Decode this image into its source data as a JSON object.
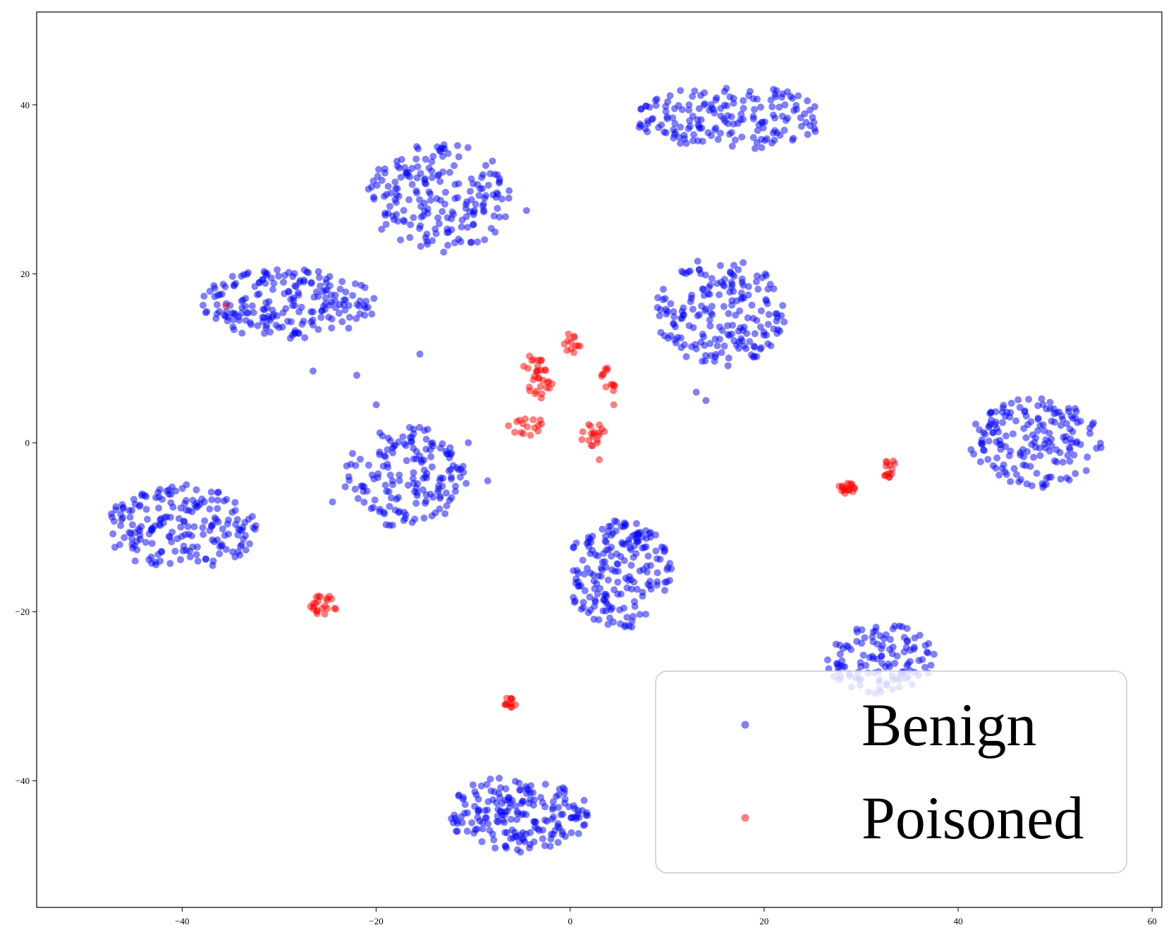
{
  "chart_data": {
    "type": "scatter",
    "title": "",
    "xlabel": "",
    "ylabel": "",
    "xlim": [
      -55,
      61
    ],
    "ylim": [
      -55,
      51
    ],
    "x_ticks": [
      -40,
      -20,
      0,
      20,
      40,
      60
    ],
    "y_ticks": [
      -40,
      -20,
      0,
      20,
      40
    ],
    "grid": false,
    "legend_position": "bottom-right",
    "colors": {
      "Benign": "#0000ff",
      "Poisoned": "#ff0000"
    },
    "marker_alpha": 0.5,
    "series": [
      {
        "name": "Benign",
        "clusters": [
          {
            "cx": 16.5,
            "cy": 38.5,
            "rx": 10.0,
            "ry": 3.8,
            "count": 170
          },
          {
            "cx": -13.5,
            "cy": 29.0,
            "rx": 7.5,
            "ry": 6.5,
            "count": 190
          },
          {
            "cx": -29.0,
            "cy": 16.5,
            "rx": 9.0,
            "ry": 4.2,
            "count": 200
          },
          {
            "cx": 15.5,
            "cy": 15.5,
            "rx": 6.7,
            "ry": 6.5,
            "count": 190
          },
          {
            "cx": -17.0,
            "cy": -4.0,
            "rx": 6.5,
            "ry": 6.0,
            "count": 160
          },
          {
            "cx": -40.0,
            "cy": -10.0,
            "rx": 7.8,
            "ry": 5.2,
            "count": 190
          },
          {
            "cx": 5.0,
            "cy": -15.5,
            "rx": 5.5,
            "ry": 6.5,
            "count": 190
          },
          {
            "cx": 48.0,
            "cy": 0.0,
            "rx": 6.8,
            "ry": 5.4,
            "count": 170
          },
          {
            "cx": 32.0,
            "cy": -25.5,
            "rx": 6.0,
            "ry": 4.2,
            "count": 120
          },
          {
            "cx": -5.5,
            "cy": -44.0,
            "rx": 7.5,
            "ry": 4.5,
            "count": 190
          }
        ],
        "outliers": [
          [
            -22,
            8
          ],
          [
            -15.5,
            10.5
          ],
          [
            -20,
            4.5
          ],
          [
            -26.5,
            8.5
          ],
          [
            -4.5,
            27.5
          ],
          [
            -8.5,
            -4.5
          ],
          [
            -24.5,
            -7
          ],
          [
            13,
            6
          ],
          [
            14,
            5
          ],
          [
            -10.5,
            0
          ],
          [
            -11,
            -3.5
          ]
        ]
      },
      {
        "name": "Poisoned",
        "clusters": [
          {
            "cx": 0.2,
            "cy": 11.8,
            "rx": 0.9,
            "ry": 1.2,
            "count": 12
          },
          {
            "cx": -4.0,
            "cy": 9.0,
            "rx": 1.6,
            "ry": 1.6,
            "count": 18
          },
          {
            "cx": -3.0,
            "cy": 6.5,
            "rx": 1.4,
            "ry": 1.2,
            "count": 14
          },
          {
            "cx": 4.0,
            "cy": 7.5,
            "rx": 1.0,
            "ry": 1.5,
            "count": 12
          },
          {
            "cx": -4.5,
            "cy": 2.0,
            "rx": 2.0,
            "ry": 1.2,
            "count": 16
          },
          {
            "cx": 2.2,
            "cy": 1.0,
            "rx": 1.4,
            "ry": 1.4,
            "count": 18
          },
          {
            "cx": -25.5,
            "cy": -19.2,
            "rx": 1.5,
            "ry": 1.2,
            "count": 22
          },
          {
            "cx": -6.5,
            "cy": -30.8,
            "rx": 1.0,
            "ry": 0.6,
            "count": 12
          },
          {
            "cx": 28.5,
            "cy": -5.5,
            "rx": 0.9,
            "ry": 0.9,
            "count": 18
          },
          {
            "cx": 32.8,
            "cy": -3.0,
            "rx": 0.9,
            "ry": 1.2,
            "count": 14
          }
        ],
        "outliers": [
          [
            -35.5,
            16.2
          ],
          [
            4.5,
            4.5
          ],
          [
            3,
            -2
          ]
        ]
      }
    ]
  },
  "legend": {
    "entries": [
      {
        "label": "Benign",
        "color": "#0000ff"
      },
      {
        "label": "Poisoned",
        "color": "#ff0000"
      }
    ]
  }
}
